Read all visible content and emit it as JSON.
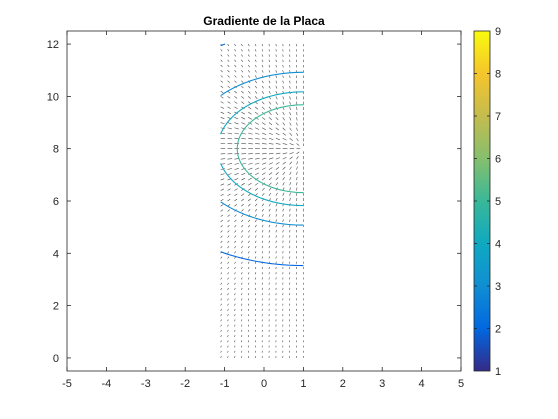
{
  "chart_data": {
    "type": "contour-quiver",
    "title": "Gradiente de la Placa",
    "xlabel": "",
    "ylabel": "",
    "xlim": [
      -5,
      5
    ],
    "ylim": [
      -0.5,
      12.5
    ],
    "x_ticks": [
      "-5",
      "-4",
      "-3",
      "-2",
      "-1",
      "0",
      "1",
      "2",
      "3",
      "4",
      "5"
    ],
    "y_ticks": [
      "0",
      "2",
      "4",
      "6",
      "8",
      "10",
      "12"
    ],
    "grid": false,
    "plate": {
      "x": [
        -1.1,
        1.0
      ],
      "y": [
        0,
        12
      ]
    },
    "hot_spot": {
      "x": 1.0,
      "y": 8.0
    },
    "contour_levels": [
      2,
      3,
      4,
      5
    ],
    "colorbar": {
      "location": "right",
      "limits": [
        1,
        9
      ],
      "ticks": [
        "1",
        "2",
        "3",
        "4",
        "5",
        "6",
        "7",
        "8",
        "9"
      ],
      "colormap": "parula"
    },
    "colors": {
      "axes": "#262626",
      "quiver": "#4a4a4a",
      "parula_low": "#352a87",
      "parula_mid": "#13a9c8",
      "parula_high": "#f9fb0e"
    }
  }
}
